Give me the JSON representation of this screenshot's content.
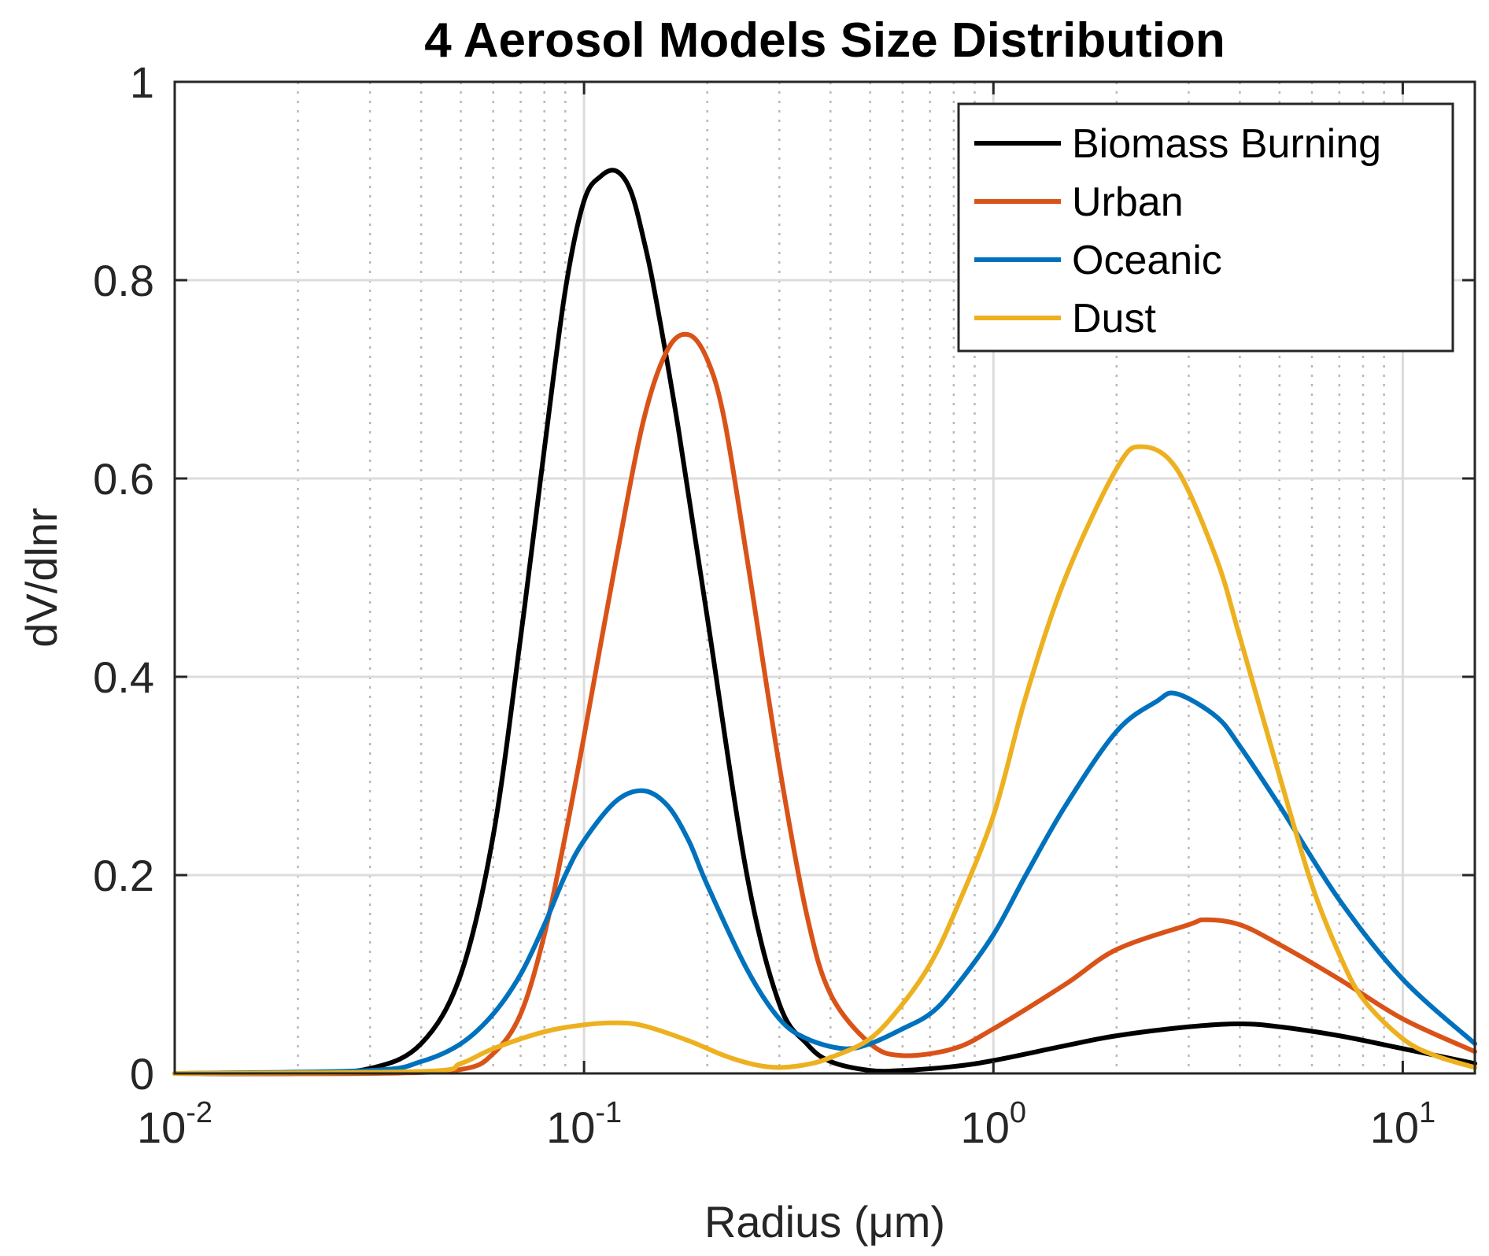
{
  "chart_data": {
    "type": "line",
    "title": "4 Aerosol Models Size Distribution",
    "xlabel": "Radius (μm)",
    "ylabel": "dV/dlnr",
    "xscale": "log",
    "xlim": [
      0.01,
      15
    ],
    "ylim": [
      0,
      1
    ],
    "grid": true,
    "minor_grid": true,
    "legend_position": "top-right",
    "xticks": [
      {
        "value": 0.01,
        "base": "10",
        "exp": "-2"
      },
      {
        "value": 0.1,
        "base": "10",
        "exp": "-1"
      },
      {
        "value": 1,
        "base": "10",
        "exp": "0"
      },
      {
        "value": 10,
        "base": "10",
        "exp": "1"
      }
    ],
    "yticks": [
      {
        "value": 0,
        "label": "0"
      },
      {
        "value": 0.2,
        "label": "0.2"
      },
      {
        "value": 0.4,
        "label": "0.4"
      },
      {
        "value": 0.6,
        "label": "0.6"
      },
      {
        "value": 0.8,
        "label": "0.8"
      },
      {
        "value": 1,
        "label": "1"
      }
    ],
    "series": [
      {
        "name": "Biomass Burning",
        "color": "#000000",
        "x": [
          0.01,
          0.02,
          0.03,
          0.04,
          0.05,
          0.06,
          0.07,
          0.08,
          0.09,
          0.1,
          0.11,
          0.12,
          0.13,
          0.14,
          0.15,
          0.17,
          0.2,
          0.25,
          0.3,
          0.35,
          0.4,
          0.5,
          0.6,
          0.8,
          1.0,
          1.5,
          2.0,
          3.0,
          4.0,
          5.0,
          7.0,
          10.0,
          15.0
        ],
        "y": [
          0.0,
          0.0,
          0.005,
          0.03,
          0.1,
          0.24,
          0.44,
          0.63,
          0.79,
          0.88,
          0.905,
          0.91,
          0.89,
          0.84,
          0.78,
          0.65,
          0.46,
          0.2,
          0.07,
          0.03,
          0.012,
          0.003,
          0.003,
          0.007,
          0.013,
          0.028,
          0.038,
          0.047,
          0.05,
          0.047,
          0.038,
          0.025,
          0.01
        ]
      },
      {
        "name": "Urban",
        "color": "#D95319",
        "x": [
          0.01,
          0.03,
          0.05,
          0.06,
          0.07,
          0.08,
          0.09,
          0.1,
          0.12,
          0.14,
          0.16,
          0.18,
          0.2,
          0.22,
          0.25,
          0.3,
          0.35,
          0.4,
          0.5,
          0.6,
          0.8,
          1.0,
          1.5,
          2.0,
          3.0,
          3.3,
          4.0,
          5.0,
          7.0,
          10.0,
          15.0
        ],
        "y": [
          0.0,
          0.0,
          0.004,
          0.02,
          0.06,
          0.14,
          0.24,
          0.34,
          0.52,
          0.66,
          0.73,
          0.745,
          0.72,
          0.66,
          0.52,
          0.31,
          0.16,
          0.08,
          0.03,
          0.018,
          0.025,
          0.045,
          0.09,
          0.125,
          0.15,
          0.155,
          0.15,
          0.13,
          0.095,
          0.055,
          0.022
        ]
      },
      {
        "name": "Oceanic",
        "color": "#0072BD",
        "x": [
          0.01,
          0.03,
          0.04,
          0.05,
          0.06,
          0.07,
          0.08,
          0.09,
          0.1,
          0.12,
          0.14,
          0.16,
          0.18,
          0.2,
          0.25,
          0.3,
          0.35,
          0.43,
          0.5,
          0.6,
          0.7,
          0.8,
          1.0,
          1.2,
          1.5,
          2.0,
          2.5,
          2.8,
          3.5,
          4.0,
          5.0,
          7.0,
          10.0,
          15.0
        ],
        "y": [
          0.0,
          0.003,
          0.012,
          0.03,
          0.06,
          0.1,
          0.15,
          0.2,
          0.235,
          0.275,
          0.285,
          0.27,
          0.235,
          0.19,
          0.105,
          0.055,
          0.035,
          0.025,
          0.03,
          0.045,
          0.06,
          0.085,
          0.14,
          0.2,
          0.27,
          0.345,
          0.375,
          0.383,
          0.36,
          0.33,
          0.27,
          0.175,
          0.095,
          0.03
        ]
      },
      {
        "name": "Dust",
        "color": "#EDB120",
        "x": [
          0.01,
          0.04,
          0.05,
          0.06,
          0.08,
          0.1,
          0.12,
          0.14,
          0.18,
          0.22,
          0.26,
          0.3,
          0.35,
          0.4,
          0.5,
          0.6,
          0.7,
          0.8,
          1.0,
          1.2,
          1.5,
          2.0,
          2.3,
          2.8,
          3.5,
          4.0,
          5.0,
          6.0,
          7.0,
          8.0,
          10.0,
          12.0,
          15.0
        ],
        "y": [
          0.0,
          0.002,
          0.01,
          0.025,
          0.042,
          0.049,
          0.051,
          0.048,
          0.033,
          0.018,
          0.009,
          0.006,
          0.009,
          0.016,
          0.035,
          0.07,
          0.11,
          0.16,
          0.26,
          0.38,
          0.5,
          0.61,
          0.632,
          0.61,
          0.52,
          0.44,
          0.3,
          0.19,
          0.12,
          0.075,
          0.035,
          0.018,
          0.006
        ]
      }
    ]
  }
}
